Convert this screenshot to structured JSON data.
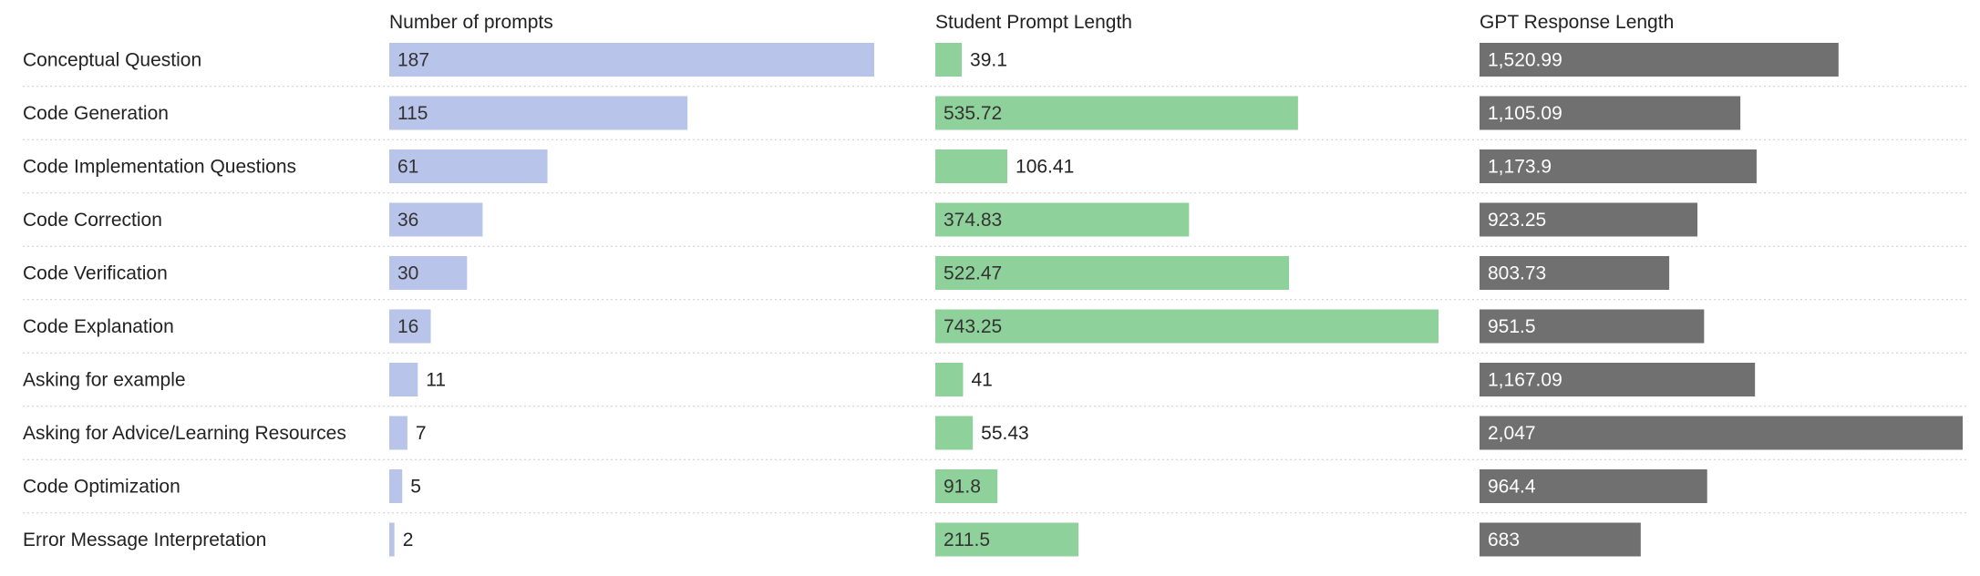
{
  "chart_data": {
    "type": "bar",
    "orientation": "horizontal",
    "categories": [
      "Conceptual Question",
      "Code Generation",
      "Code Implementation Questions",
      "Code Correction",
      "Code Verification",
      "Code Explanation",
      "Asking for example",
      "Asking for Advice/Learning Resources",
      "Code Optimization",
      "Error Message Interpretation"
    ],
    "series": [
      {
        "name": "Number of prompts",
        "color": "#b8c4ea",
        "max": 187,
        "values": [
          187,
          115,
          61,
          36,
          30,
          16,
          11,
          7,
          5,
          2
        ],
        "labels": [
          "187",
          "115",
          "61",
          "36",
          "30",
          "16",
          "11",
          "7",
          "5",
          "2"
        ]
      },
      {
        "name": "Student Prompt Length",
        "color": "#8fd19a",
        "max": 743.25,
        "values": [
          39.1,
          535.72,
          106.41,
          374.83,
          522.47,
          743.25,
          41,
          55.43,
          91.8,
          211.5
        ],
        "labels": [
          "39.1",
          "535.72",
          "106.41",
          "374.83",
          "522.47",
          "743.25",
          "41",
          "55.43",
          "91.8",
          "211.5"
        ]
      },
      {
        "name": "GPT Response Length",
        "color": "#707070",
        "max": 2047,
        "values": [
          1520.99,
          1105.09,
          1173.9,
          923.25,
          803.73,
          951.5,
          1167.09,
          2047,
          964.4,
          683
        ],
        "labels": [
          "1,520.99",
          "1,105.09",
          "1,173.9",
          "923.25",
          "803.73",
          "951.5",
          "1,167.09",
          "2,047",
          "964.4",
          "683"
        ]
      }
    ],
    "grid": false,
    "legend": "none"
  }
}
